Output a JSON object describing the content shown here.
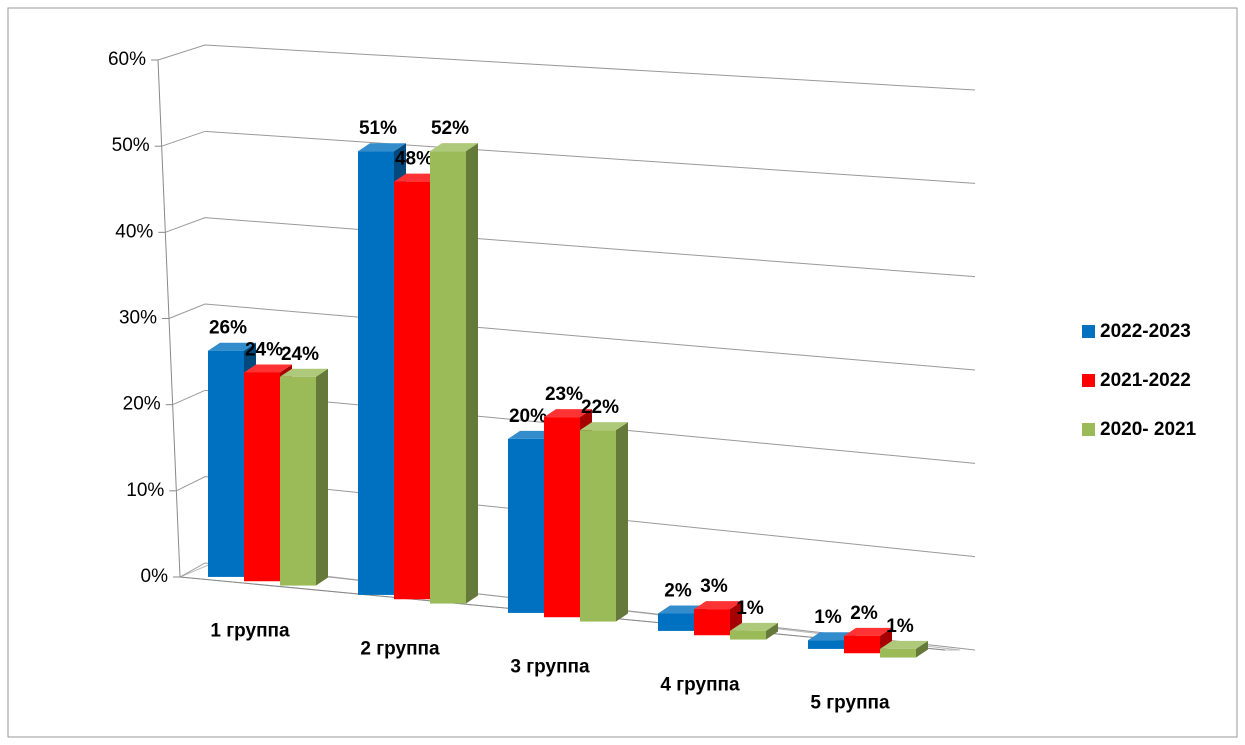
{
  "chart_data": {
    "type": "bar3d",
    "categories": [
      "1 группа",
      "2 группа",
      "3 группа",
      "4 группа",
      "5 группа"
    ],
    "series": [
      {
        "name": "2022-2023",
        "color": "#0070c0",
        "values": [
          26,
          51,
          20,
          2,
          1
        ],
        "value_labels": [
          "26%",
          "51%",
          "20%",
          "2%",
          "1%"
        ]
      },
      {
        "name": "2021-2022",
        "color": "#ff0000",
        "values": [
          24,
          48,
          23,
          3,
          2
        ],
        "value_labels": [
          "24%",
          "48%",
          "23%",
          "3%",
          "2%"
        ]
      },
      {
        "name": "2020- 2021",
        "color": "#9bbb59",
        "values": [
          24,
          52,
          22,
          1,
          1
        ],
        "value_labels": [
          "24%",
          "52%",
          "22%",
          "1%",
          "1%"
        ]
      }
    ],
    "ylim": [
      0,
      60
    ],
    "yticks": [
      {
        "value": 0,
        "label": "0%"
      },
      {
        "value": 10,
        "label": "10%"
      },
      {
        "value": 20,
        "label": "20%"
      },
      {
        "value": 30,
        "label": "30%"
      },
      {
        "value": 40,
        "label": "40%"
      },
      {
        "value": 50,
        "label": "50%"
      },
      {
        "value": 60,
        "label": "60%"
      }
    ],
    "grid": true,
    "legend": "right"
  }
}
